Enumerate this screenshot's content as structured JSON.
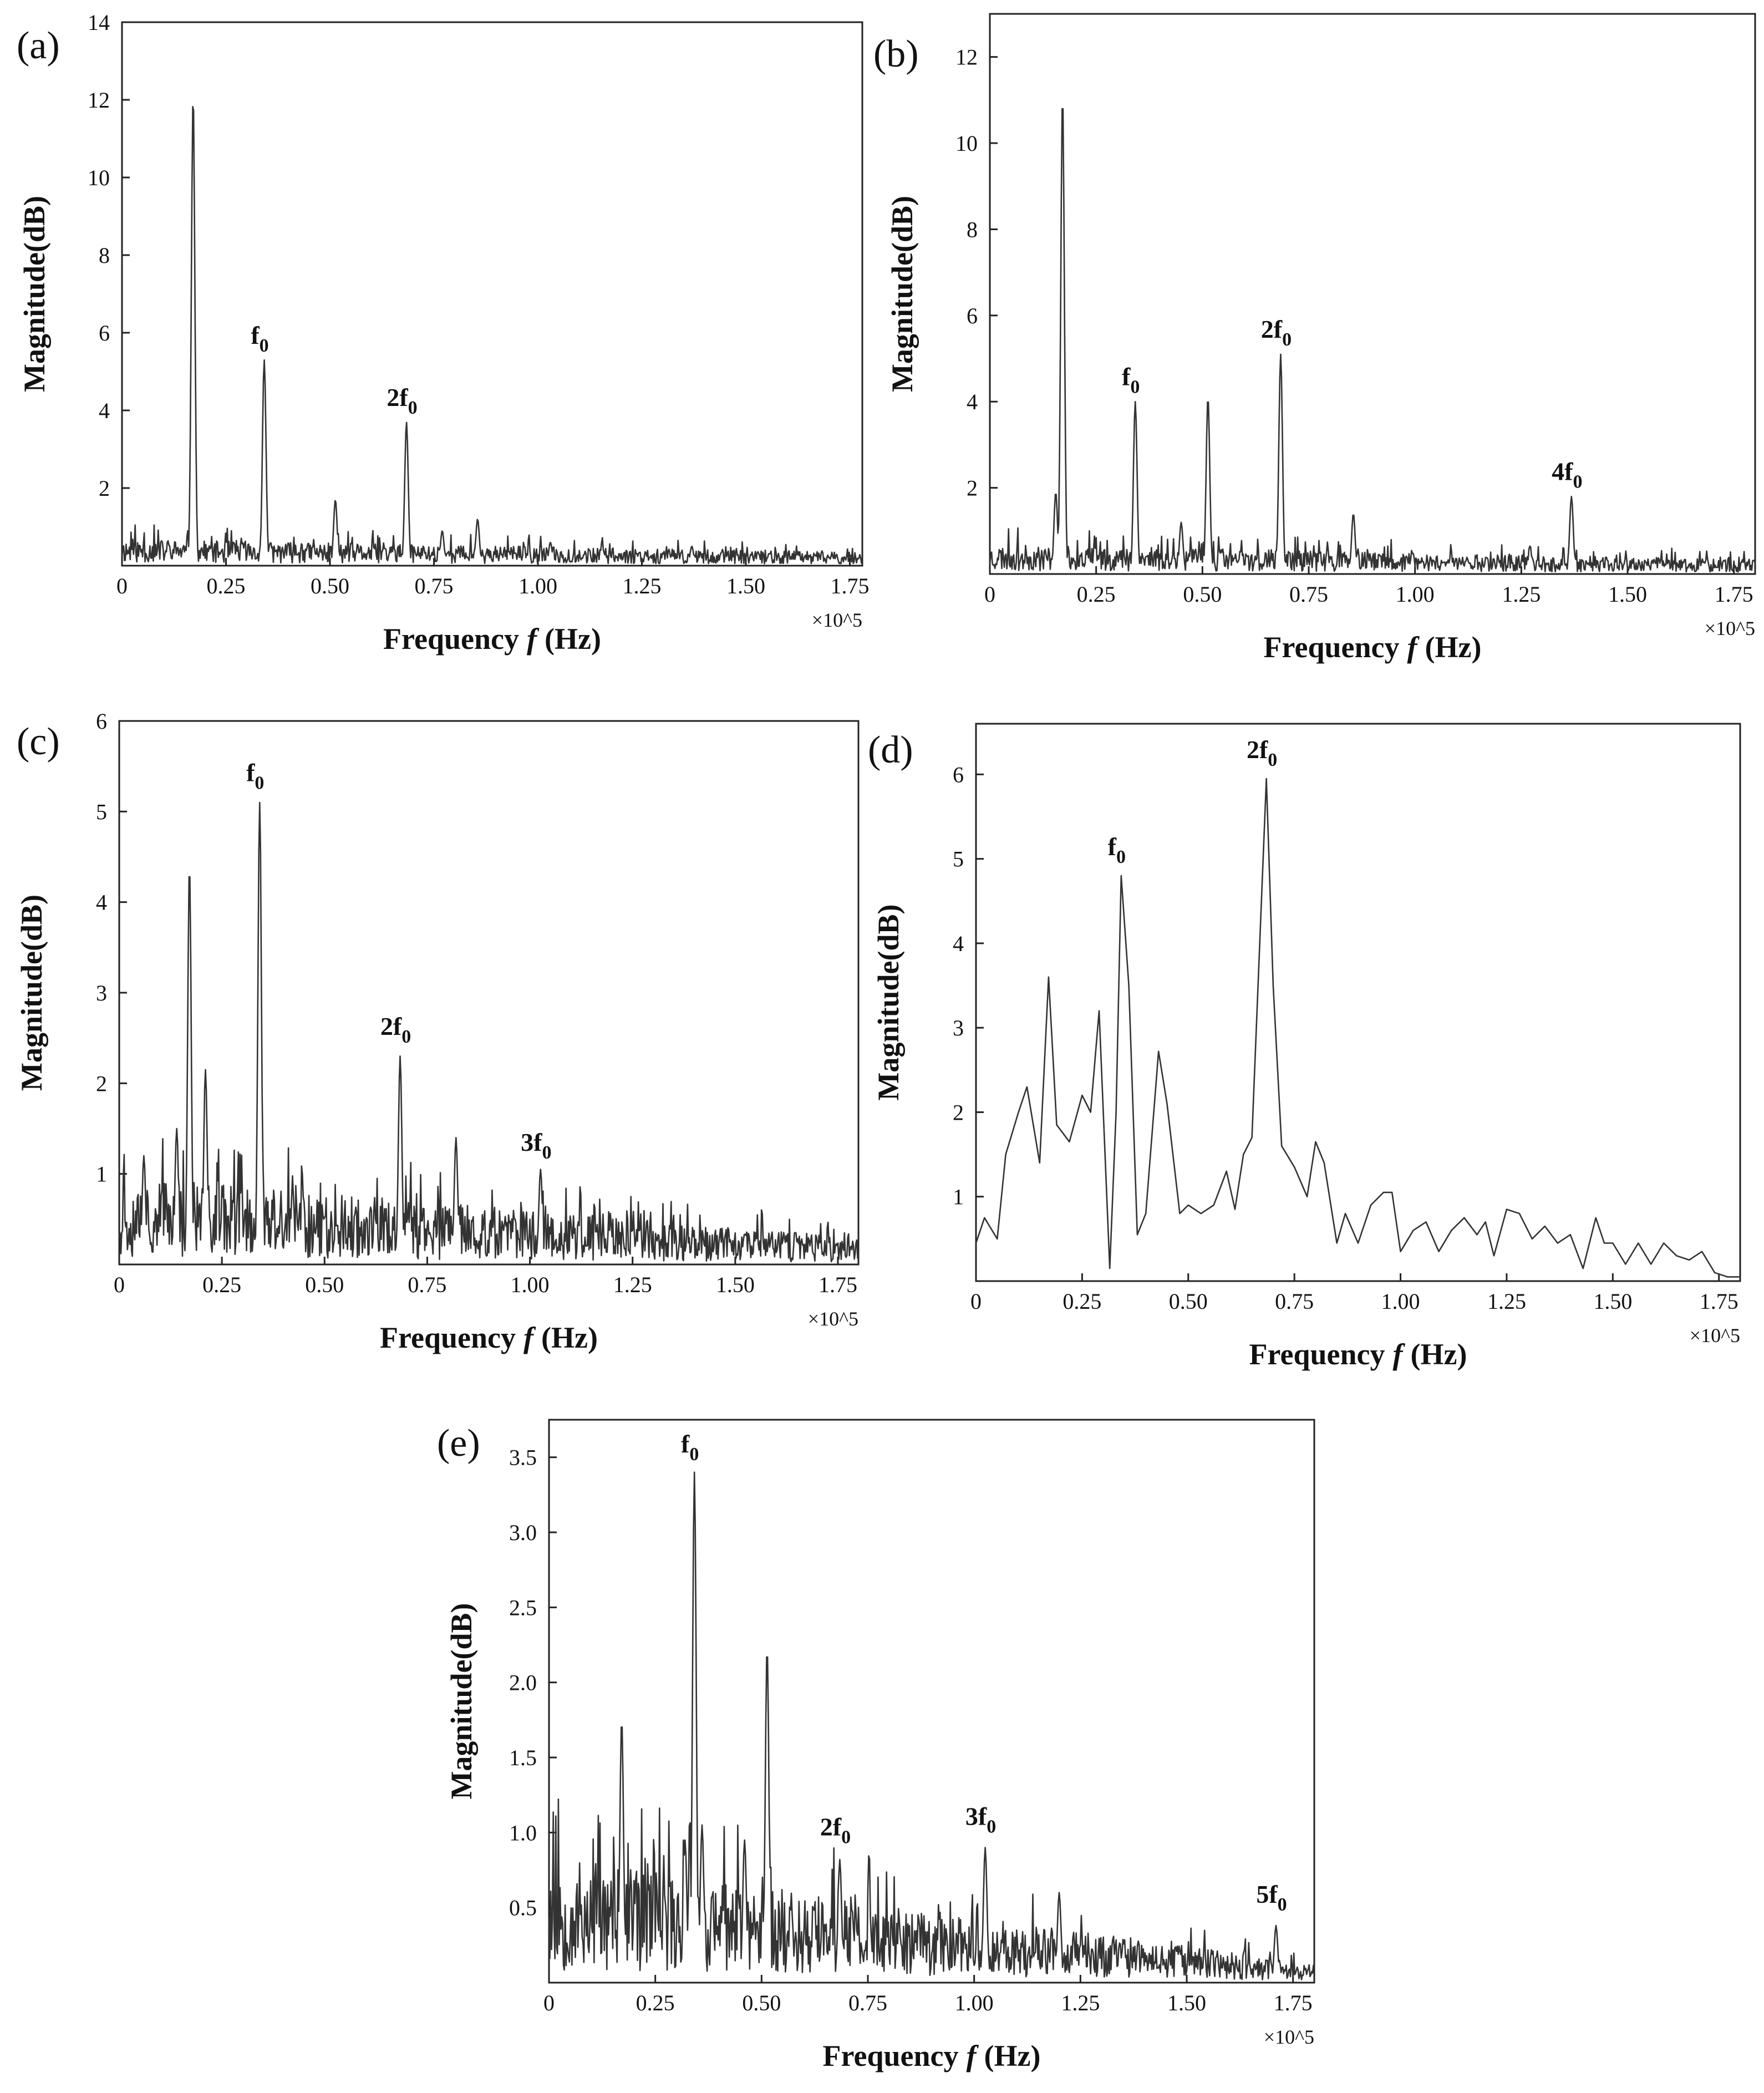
{
  "chart_data": [
    {
      "panel": "(a)",
      "type": "line",
      "xlabel": "Frequency",
      "xlabel_italic": "f",
      "xlabel_unit": "(Hz)",
      "ylabel": "Magnitude(dB)",
      "x_multiplier": "×10^5",
      "xlim": [
        0,
        1.78
      ],
      "ylim": [
        0,
        14
      ],
      "xticks": [
        "0",
        "0.25",
        "0.50",
        "0.75",
        "1.00",
        "1.25",
        "1.50",
        "1.75"
      ],
      "xtick_values": [
        0,
        0.25,
        0.5,
        0.75,
        1.0,
        1.25,
        1.5,
        1.75
      ],
      "yticks": [
        "2",
        "4",
        "6",
        "8",
        "10",
        "12",
        "14"
      ],
      "ytick_values": [
        2,
        4,
        6,
        8,
        10,
        12,
        14
      ],
      "peaks": [
        [
          0.171,
          12.1
        ],
        [
          0.342,
          5.3
        ],
        [
          0.513,
          1.7
        ],
        [
          0.684,
          3.7
        ],
        [
          0.855,
          1.2
        ],
        [
          0.77,
          0.9
        ],
        [
          1.37,
          0.5
        ],
        [
          1.03,
          0.6
        ]
      ],
      "noise_level": 0.6,
      "noise_decay": 0.5,
      "seed": 11,
      "annotations": [
        {
          "main": "f",
          "sub": "0",
          "x": 0.342,
          "y": 5.4
        },
        {
          "main": "2f",
          "sub": "0",
          "x": 0.684,
          "y": 3.8
        }
      ]
    },
    {
      "panel": "(b)",
      "type": "line",
      "xlabel": "Frequency",
      "xlabel_italic": "f",
      "xlabel_unit": "(Hz)",
      "ylabel": "Magnitude(dB)",
      "x_multiplier": "×10^5",
      "xlim": [
        0,
        1.8
      ],
      "ylim": [
        0,
        13
      ],
      "xticks": [
        "0",
        "0.25",
        "0.50",
        "0.75",
        "1.00",
        "1.25",
        "1.50",
        "1.75"
      ],
      "xtick_values": [
        0,
        0.25,
        0.5,
        0.75,
        1.0,
        1.25,
        1.5,
        1.75
      ],
      "yticks": [
        "2",
        "4",
        "6",
        "8",
        "10",
        "12"
      ],
      "ytick_values": [
        2,
        4,
        6,
        8,
        10,
        12
      ],
      "peaks": [
        [
          0.171,
          11.1
        ],
        [
          0.342,
          4.0
        ],
        [
          0.513,
          4.1
        ],
        [
          0.684,
          5.1
        ],
        [
          0.855,
          1.4
        ],
        [
          1.368,
          1.8
        ],
        [
          0.45,
          1.2
        ],
        [
          0.155,
          1.9
        ]
      ],
      "noise_level": 0.6,
      "noise_decay": 0.5,
      "seed": 23,
      "annotations": [
        {
          "main": "f",
          "sub": "0",
          "x": 0.342,
          "y": 4.1
        },
        {
          "main": "2f",
          "sub": "0",
          "x": 0.684,
          "y": 5.2
        },
        {
          "main": "4f",
          "sub": "0",
          "x": 1.368,
          "y": 1.9
        }
      ]
    },
    {
      "panel": "(c)",
      "type": "line",
      "xlabel": "Frequency",
      "xlabel_italic": "f",
      "xlabel_unit": "(Hz)",
      "ylabel": "Magnitude(dB)",
      "x_multiplier": "×10^5",
      "xlim": [
        0,
        1.8
      ],
      "ylim": [
        0,
        6
      ],
      "xticks": [
        "0",
        "0.25",
        "0.50",
        "0.75",
        "1.00",
        "1.25",
        "1.50",
        "1.75"
      ],
      "xtick_values": [
        0,
        0.25,
        0.5,
        0.75,
        1.0,
        1.25,
        1.5,
        1.75
      ],
      "yticks": [
        "1",
        "2",
        "3",
        "4",
        "5",
        "6"
      ],
      "ytick_values": [
        1,
        2,
        3,
        4,
        5,
        6
      ],
      "peaks": [
        [
          0.171,
          4.4
        ],
        [
          0.342,
          5.1
        ],
        [
          0.21,
          2.15
        ],
        [
          0.684,
          2.3
        ],
        [
          0.82,
          1.4
        ],
        [
          1.026,
          1.05
        ],
        [
          0.14,
          1.5
        ],
        [
          0.06,
          1.2
        ]
      ],
      "noise_level": 0.9,
      "noise_decay": 0.7,
      "seed": 37,
      "annotations": [
        {
          "main": "f",
          "sub": "0",
          "x": 0.342,
          "y": 5.2
        },
        {
          "main": "2f",
          "sub": "0",
          "x": 0.684,
          "y": 2.4
        },
        {
          "main": "3f",
          "sub": "0",
          "x": 1.026,
          "y": 1.12
        }
      ]
    },
    {
      "panel": "(d)",
      "type": "line",
      "xlabel": "Frequency",
      "xlabel_italic": "f",
      "xlabel_unit": "(Hz)",
      "ylabel": "Magnitude(dB)",
      "x_multiplier": "×10^5",
      "xlim": [
        0,
        1.8
      ],
      "ylim": [
        0,
        6.6
      ],
      "xticks": [
        "0",
        "0.25",
        "0.50",
        "0.75",
        "1.00",
        "1.25",
        "1.50",
        "1.75"
      ],
      "xtick_values": [
        0,
        0.25,
        0.5,
        0.75,
        1.0,
        1.25,
        1.5,
        1.75
      ],
      "yticks": [
        "1",
        "2",
        "3",
        "4",
        "5",
        "6"
      ],
      "ytick_values": [
        1,
        2,
        3,
        4,
        5,
        6
      ],
      "x": [
        0,
        0.02,
        0.05,
        0.07,
        0.1,
        0.12,
        0.15,
        0.171,
        0.19,
        0.22,
        0.25,
        0.27,
        0.29,
        0.315,
        0.33,
        0.342,
        0.36,
        0.38,
        0.4,
        0.43,
        0.45,
        0.48,
        0.5,
        0.53,
        0.56,
        0.59,
        0.61,
        0.63,
        0.65,
        0.684,
        0.7,
        0.72,
        0.75,
        0.78,
        0.8,
        0.82,
        0.85,
        0.87,
        0.9,
        0.93,
        0.96,
        0.98,
        1.0,
        1.03,
        1.06,
        1.09,
        1.12,
        1.15,
        1.18,
        1.2,
        1.22,
        1.25,
        1.28,
        1.31,
        1.34,
        1.37,
        1.4,
        1.43,
        1.46,
        1.48,
        1.5,
        1.53,
        1.56,
        1.59,
        1.62,
        1.65,
        1.68,
        1.71,
        1.74,
        1.77,
        1.8
      ],
      "y": [
        0.45,
        0.75,
        0.5,
        1.5,
        2.0,
        2.3,
        1.4,
        3.6,
        1.85,
        1.65,
        2.2,
        2.0,
        3.2,
        0.15,
        2.0,
        4.8,
        3.5,
        0.55,
        0.8,
        2.72,
        2.1,
        0.8,
        0.9,
        0.8,
        0.9,
        1.3,
        0.85,
        1.5,
        1.7,
        5.95,
        3.5,
        1.6,
        1.35,
        1.0,
        1.65,
        1.4,
        0.45,
        0.8,
        0.45,
        0.9,
        1.05,
        1.05,
        0.35,
        0.6,
        0.7,
        0.35,
        0.6,
        0.75,
        0.55,
        0.7,
        0.3,
        0.85,
        0.8,
        0.5,
        0.65,
        0.45,
        0.55,
        0.15,
        0.75,
        0.45,
        0.45,
        0.2,
        0.45,
        0.2,
        0.45,
        0.3,
        0.25,
        0.35,
        0.1,
        0.05,
        0.05
      ],
      "annotations": [
        {
          "main": "f",
          "sub": "0",
          "x": 0.342,
          "y": 4.9
        },
        {
          "main": "2f",
          "sub": "0",
          "x": 0.684,
          "y": 6.05
        }
      ]
    },
    {
      "panel": "(e)",
      "type": "line",
      "xlabel": "Frequency",
      "xlabel_italic": "f",
      "xlabel_unit": "(Hz)",
      "ylabel": "Magnitude(dB)",
      "x_multiplier": "×10^5",
      "xlim": [
        0,
        1.8
      ],
      "ylim": [
        0,
        3.75
      ],
      "xticks": [
        "0",
        "0.25",
        "0.50",
        "0.75",
        "1.00",
        "1.25",
        "1.50",
        "1.75"
      ],
      "xtick_values": [
        0,
        0.25,
        0.5,
        0.75,
        1.0,
        1.25,
        1.5,
        1.75
      ],
      "yticks": [
        "0.5",
        "1.0",
        "1.5",
        "2.0",
        "2.5",
        "3.0",
        "3.5"
      ],
      "ytick_values": [
        0.5,
        1.0,
        1.5,
        2.0,
        2.5,
        3.0,
        3.5
      ],
      "peaks": [
        [
          0.171,
          1.75
        ],
        [
          0.342,
          3.4
        ],
        [
          0.513,
          2.23
        ],
        [
          0.684,
          0.82
        ],
        [
          1.026,
          0.9
        ],
        [
          1.2,
          0.6
        ],
        [
          1.71,
          0.38
        ],
        [
          0.46,
          0.95
        ],
        [
          0.32,
          0.95
        ],
        [
          0.36,
          1.05
        ]
      ],
      "noise_level": 0.75,
      "noise_decay": 0.85,
      "seed": 53,
      "annotations": [
        {
          "main": "f",
          "sub": "0",
          "x": 0.342,
          "y": 3.45
        },
        {
          "main": "2f",
          "sub": "0",
          "x": 0.684,
          "y": 0.9
        },
        {
          "main": "3f",
          "sub": "0",
          "x": 1.026,
          "y": 0.97
        },
        {
          "main": "5f",
          "sub": "0",
          "x": 1.71,
          "y": 0.45
        }
      ]
    }
  ]
}
